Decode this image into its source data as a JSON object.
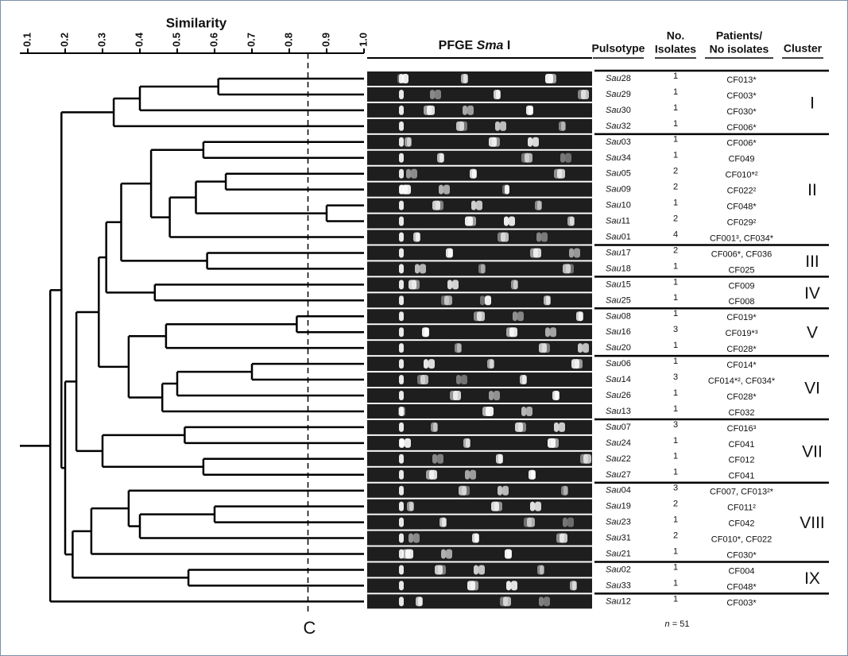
{
  "axis": {
    "title": "Similarity",
    "xlim": [
      0.1,
      1.0
    ],
    "xticks": [
      0.1,
      0.2,
      0.3,
      0.4,
      0.5,
      0.6,
      0.7,
      0.8,
      0.9,
      {
        "value": 1,
        "label": "1.0"
      }
    ],
    "cutoff": 0.85,
    "cutoff_label": "C"
  },
  "gel": {
    "title": "PFGE Sma I"
  },
  "table": {
    "headers": [
      [
        "Pulsotype"
      ],
      [
        "No.",
        "Isolates"
      ],
      [
        "Patients/",
        "No isolates"
      ],
      [
        "Cluster"
      ]
    ],
    "rows": [
      {
        "pulsotype": "Sau28",
        "isolates": 1,
        "patients": "CF013*"
      },
      {
        "pulsotype": "Sau29",
        "isolates": 1,
        "patients": "CF003*"
      },
      {
        "pulsotype": "Sau30",
        "isolates": 1,
        "patients": "CF030*"
      },
      {
        "pulsotype": "Sau32",
        "isolates": 1,
        "patients": "CF006*"
      },
      {
        "pulsotype": "Sau03",
        "isolates": 1,
        "patients": "CF006*"
      },
      {
        "pulsotype": "Sau34",
        "isolates": 1,
        "patients": "CF049"
      },
      {
        "pulsotype": "Sau05",
        "isolates": 2,
        "patients": "CF010*²"
      },
      {
        "pulsotype": "Sau09",
        "isolates": 2,
        "patients": "CF022²"
      },
      {
        "pulsotype": "Sau10",
        "isolates": 1,
        "patients": "CF048*"
      },
      {
        "pulsotype": "Sau11",
        "isolates": 2,
        "patients": "CF029²"
      },
      {
        "pulsotype": "Sau01",
        "isolates": 4,
        "patients": "CF001³, CF034*"
      },
      {
        "pulsotype": "Sau17",
        "isolates": 2,
        "patients": "CF006*, CF036"
      },
      {
        "pulsotype": "Sau18",
        "isolates": 1,
        "patients": "CF025"
      },
      {
        "pulsotype": "Sau15",
        "isolates": 1,
        "patients": "CF009"
      },
      {
        "pulsotype": "Sau25",
        "isolates": 1,
        "patients": "CF008"
      },
      {
        "pulsotype": "Sau08",
        "isolates": 1,
        "patients": "CF019*"
      },
      {
        "pulsotype": "Sau16",
        "isolates": 3,
        "patients": "CF019*³"
      },
      {
        "pulsotype": "Sau20",
        "isolates": 1,
        "patients": "CF028*"
      },
      {
        "pulsotype": "Sau06",
        "isolates": 1,
        "patients": "CF014*"
      },
      {
        "pulsotype": "Sau14",
        "isolates": 3,
        "patients": "CF014*², CF034*"
      },
      {
        "pulsotype": "Sau26",
        "isolates": 1,
        "patients": "CF028*"
      },
      {
        "pulsotype": "Sau13",
        "isolates": 1,
        "patients": "CF032"
      },
      {
        "pulsotype": "Sau07",
        "isolates": 3,
        "patients": "CF016³"
      },
      {
        "pulsotype": "Sau24",
        "isolates": 1,
        "patients": "CF041"
      },
      {
        "pulsotype": "Sau22",
        "isolates": 1,
        "patients": "CF012"
      },
      {
        "pulsotype": "Sau27",
        "isolates": 1,
        "patients": "CF041"
      },
      {
        "pulsotype": "Sau04",
        "isolates": 3,
        "patients": "CF007, CF013²*"
      },
      {
        "pulsotype": "Sau19",
        "isolates": 2,
        "patients": "CF011²"
      },
      {
        "pulsotype": "Sau23",
        "isolates": 1,
        "patients": "CF042"
      },
      {
        "pulsotype": "Sau31",
        "isolates": 2,
        "patients": "CF010*, CF022"
      },
      {
        "pulsotype": "Sau21",
        "isolates": 1,
        "patients": "CF030*"
      },
      {
        "pulsotype": "Sau02",
        "isolates": 1,
        "patients": "CF004"
      },
      {
        "pulsotype": "Sau33",
        "isolates": 1,
        "patients": "CF048*"
      },
      {
        "pulsotype": "Sau12",
        "isolates": 1,
        "patients": "CF003*"
      }
    ],
    "clusters": [
      {
        "label": "I",
        "first_row": 0,
        "last_row": 3
      },
      {
        "label": "II",
        "first_row": 4,
        "last_row": 10
      },
      {
        "label": "III",
        "first_row": 11,
        "last_row": 12
      },
      {
        "label": "IV",
        "first_row": 13,
        "last_row": 14
      },
      {
        "label": "V",
        "first_row": 15,
        "last_row": 17
      },
      {
        "label": "VI",
        "first_row": 18,
        "last_row": 21
      },
      {
        "label": "VII",
        "first_row": 22,
        "last_row": 25
      },
      {
        "label": "VIII",
        "first_row": 26,
        "last_row": 30
      },
      {
        "label": "IX",
        "first_row": 31,
        "last_row": 32
      }
    ],
    "footnote": "n = 51"
  },
  "dendrogram": {
    "tree": {
      "similarity": 0.16,
      "children": [
        {
          "similarity": 0.19,
          "children": [
            {
              "similarity": 0.33,
              "children": [
                {
                  "similarity": 0.4,
                  "children": [
                    {
                      "similarity": 0.61,
                      "children": [
                        0,
                        1
                      ]
                    },
                    2
                  ]
                },
                3
              ]
            },
            {
              "similarity": 0.2,
              "children": [
                {
                  "similarity": 0.23,
                  "children": [
                    {
                      "similarity": 0.29,
                      "children": [
                        {
                          "similarity": 0.31,
                          "children": [
                            {
                              "similarity": 0.35,
                              "children": [
                                {
                                  "similarity": 0.43,
                                  "children": [
                                    {
                                      "similarity": 0.57,
                                      "children": [
                                        4,
                                        5
                                      ]
                                    },
                                    {
                                      "similarity": 0.48,
                                      "children": [
                                        {
                                          "similarity": 0.55,
                                          "children": [
                                            {
                                              "similarity": 0.63,
                                              "children": [
                                                6,
                                                7
                                              ]
                                            },
                                            {
                                              "similarity": 0.9,
                                              "children": [
                                                8,
                                                9
                                              ]
                                            }
                                          ]
                                        },
                                        10
                                      ]
                                    }
                                  ]
                                },
                                {
                                  "similarity": 0.58,
                                  "children": [
                                    11,
                                    12
                                  ]
                                }
                              ]
                            },
                            {
                              "similarity": 0.44,
                              "children": [
                                13,
                                14
                              ]
                            }
                          ]
                        },
                        {
                          "similarity": 0.37,
                          "children": [
                            {
                              "similarity": 0.47,
                              "children": [
                                {
                                  "similarity": 0.82,
                                  "children": [
                                    15,
                                    16
                                  ]
                                },
                                17
                              ]
                            },
                            {
                              "similarity": 0.46,
                              "children": [
                                {
                                  "similarity": 0.5,
                                  "children": [
                                    {
                                      "similarity": 0.7,
                                      "children": [
                                        18,
                                        19
                                      ]
                                    },
                                    20
                                  ]
                                },
                                21
                              ]
                            }
                          ]
                        }
                      ]
                    },
                    {
                      "similarity": 0.3,
                      "children": [
                        {
                          "similarity": 0.52,
                          "children": [
                            22,
                            23
                          ]
                        },
                        {
                          "similarity": 0.57,
                          "children": [
                            24,
                            25
                          ]
                        }
                      ]
                    }
                  ]
                },
                {
                  "similarity": 0.22,
                  "children": [
                    {
                      "similarity": 0.27,
                      "children": [
                        {
                          "similarity": 0.37,
                          "children": [
                            26,
                            {
                              "similarity": 0.4,
                              "children": [
                                {
                                  "similarity": 0.6,
                                  "children": [
                                    27,
                                    28
                                  ]
                                },
                                29
                              ]
                            }
                          ]
                        },
                        30
                      ]
                    },
                    {
                      "similarity": 0.53,
                      "children": [
                        31,
                        32
                      ]
                    }
                  ]
                }
              ]
            }
          ]
        },
        33
      ]
    }
  }
}
